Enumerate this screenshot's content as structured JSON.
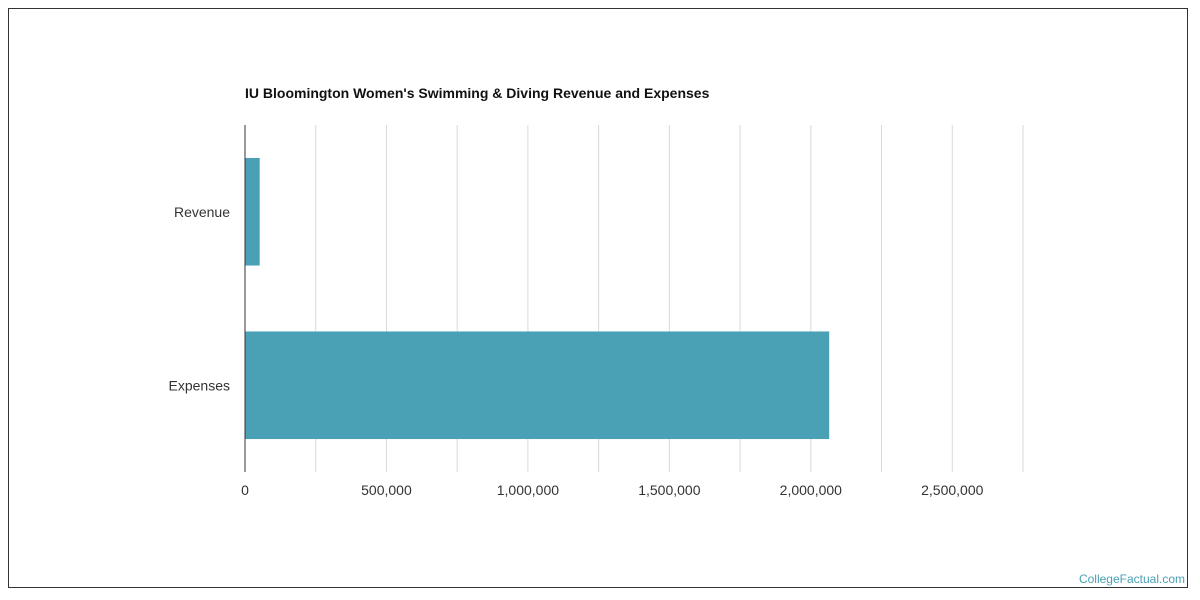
{
  "chart_data": {
    "type": "bar",
    "orientation": "horizontal",
    "title": "IU Bloomington Women's Swimming & Diving Revenue and Expenses",
    "categories": [
      "Revenue",
      "Expenses"
    ],
    "values": [
      52000,
      2065000
    ],
    "xlim": [
      0,
      2750000
    ],
    "xticks": [
      0,
      500000,
      1000000,
      1500000,
      2000000,
      2500000
    ],
    "xtick_labels": [
      "0",
      "500,000",
      "1,000,000",
      "1,500,000",
      "2,000,000",
      "2,500,000"
    ],
    "xlabel": "",
    "ylabel": "",
    "grid": true,
    "bar_color": "#4aa0b5",
    "grid_color": "#d9d9d9"
  },
  "footer": {
    "source_label": "CollegeFactual.com"
  }
}
